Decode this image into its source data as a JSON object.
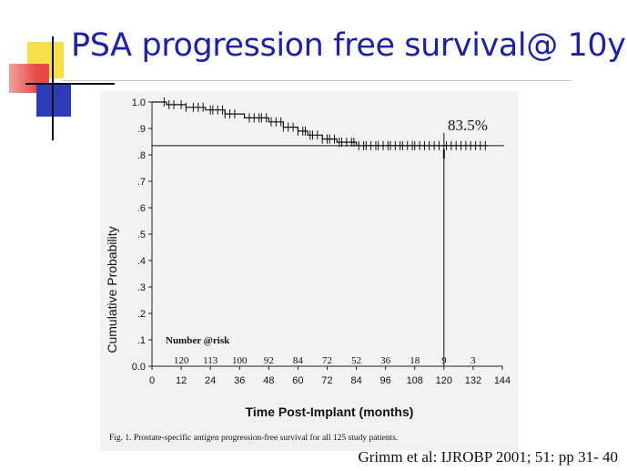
{
  "slide": {
    "title": "PSA progression free survival@ 10y",
    "citation": "Grimm et al: IJROBP 2001; 51: pp 31- 40"
  },
  "colors": {
    "title": "#1e22a0",
    "accent_yellow": "#f6e04a",
    "accent_red": "#e84848",
    "accent_blue": "#2e3bb8"
  },
  "chart_data": {
    "type": "line",
    "xlabel": "Time Post-Implant (months)",
    "ylabel": "Cumulative Probability",
    "xlim": [
      0,
      144
    ],
    "ylim": [
      0,
      1.0
    ],
    "x_ticks": [
      "0",
      "12",
      "24",
      "36",
      "48",
      "60",
      "72",
      "84",
      "96",
      "108",
      "120",
      "132",
      "144"
    ],
    "y_ticks": [
      "0.0",
      ".1",
      ".2",
      ".3",
      ".4",
      ".5",
      ".6",
      ".7",
      ".8",
      ".9",
      "1.0"
    ],
    "annotation": "83.5%",
    "reference_line": {
      "x": 120,
      "y": 0.835
    },
    "risk_title": "Number @risk",
    "risk_at": [
      {
        "x": 12,
        "n": "120"
      },
      {
        "x": 24,
        "n": "113"
      },
      {
        "x": 36,
        "n": "100"
      },
      {
        "x": 48,
        "n": "92"
      },
      {
        "x": 60,
        "n": "84"
      },
      {
        "x": 72,
        "n": "72"
      },
      {
        "x": 84,
        "n": "52"
      },
      {
        "x": 96,
        "n": "36"
      },
      {
        "x": 108,
        "n": "18"
      },
      {
        "x": 120,
        "n": "9"
      },
      {
        "x": 132,
        "n": "3"
      }
    ],
    "series": [
      {
        "points": [
          [
            0,
            1.0
          ],
          [
            6,
            1.0
          ],
          [
            6,
            0.99
          ],
          [
            14,
            0.99
          ],
          [
            14,
            0.98
          ],
          [
            22,
            0.98
          ],
          [
            22,
            0.97
          ],
          [
            30,
            0.97
          ],
          [
            30,
            0.955
          ],
          [
            38,
            0.955
          ],
          [
            38,
            0.94
          ],
          [
            48,
            0.94
          ],
          [
            48,
            0.925
          ],
          [
            54,
            0.925
          ],
          [
            54,
            0.905
          ],
          [
            60,
            0.905
          ],
          [
            60,
            0.89
          ],
          [
            64,
            0.89
          ],
          [
            64,
            0.875
          ],
          [
            70,
            0.875
          ],
          [
            70,
            0.86
          ],
          [
            76,
            0.86
          ],
          [
            76,
            0.848
          ],
          [
            84,
            0.848
          ],
          [
            84,
            0.835
          ],
          [
            138,
            0.835
          ]
        ]
      }
    ],
    "censor_x": [
      5,
      7,
      9,
      12,
      14,
      17,
      19,
      21,
      24,
      25,
      27,
      29,
      30,
      32,
      34,
      40,
      42,
      44,
      45,
      47,
      49,
      51,
      53,
      54,
      56,
      58,
      60,
      62,
      63,
      65,
      66,
      68,
      70,
      72,
      73,
      75,
      77,
      78,
      80,
      82,
      83,
      85,
      87,
      88,
      90,
      92,
      93,
      95,
      97,
      98,
      100,
      102,
      103,
      105,
      107,
      108,
      110,
      112,
      114,
      116,
      118,
      121,
      123,
      125,
      127,
      129,
      131,
      133,
      135,
      137
    ],
    "caption": "Fig. 1. Prostate-specific antigen progression-free survival for all 125 study patients."
  }
}
